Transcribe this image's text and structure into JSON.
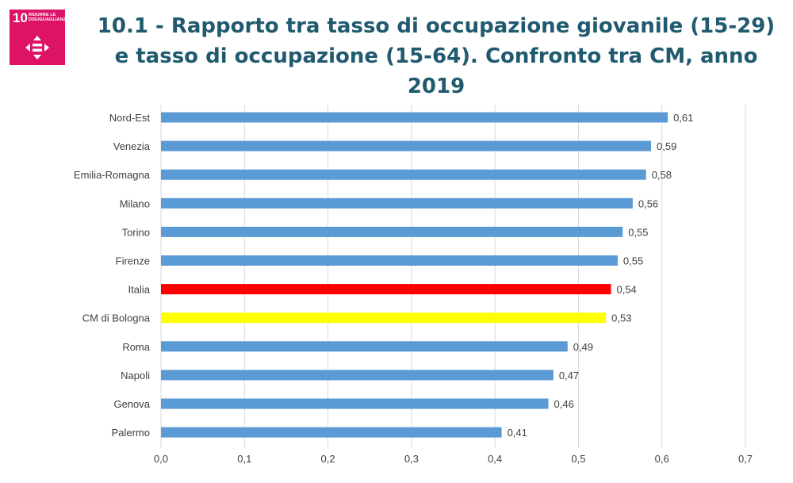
{
  "title": "10.1 - Rapporto tra tasso di occupazione giovanile (15-29) e tasso di occupazione (15-64). Confronto tra CM, anno 2019",
  "badge": {
    "number": "10",
    "goal_text": "RIDURRE LE DISUGUAGLIANZE",
    "icon": "equality-icon",
    "color": "#dd1367"
  },
  "colors": {
    "title": "#1f5a6e",
    "default_bar": "#5b9bd5",
    "highlight_italia": "#ff0000",
    "highlight_bologna": "#ffff00",
    "grid": "#d9d9d9"
  },
  "chart_data": {
    "type": "bar",
    "orientation": "horizontal",
    "title": "",
    "xlabel": "",
    "ylabel": "",
    "xlim": [
      0,
      0.7
    ],
    "xticks": [
      "0,0",
      "0,1",
      "0,2",
      "0,3",
      "0,4",
      "0,5",
      "0,6",
      "0,7"
    ],
    "grid": true,
    "legend": "none",
    "categories": [
      "Nord-Est",
      "Venezia",
      "Emilia-Romagna",
      "Milano",
      "Torino",
      "Firenze",
      "Italia",
      "CM di Bologna",
      "Roma",
      "Napoli",
      "Genova",
      "Palermo"
    ],
    "values": [
      0.607,
      0.587,
      0.581,
      0.565,
      0.553,
      0.547,
      0.539,
      0.533,
      0.487,
      0.47,
      0.464,
      0.408
    ],
    "data_labels": [
      "0,61",
      "0,59",
      "0,58",
      "0,56",
      "0,55",
      "0,55",
      "0,54",
      "0,53",
      "0,49",
      "0,47",
      "0,46",
      "0,41"
    ],
    "bar_colors": [
      "#5b9bd5",
      "#5b9bd5",
      "#5b9bd5",
      "#5b9bd5",
      "#5b9bd5",
      "#5b9bd5",
      "#ff0000",
      "#ffff00",
      "#5b9bd5",
      "#5b9bd5",
      "#5b9bd5",
      "#5b9bd5"
    ]
  }
}
